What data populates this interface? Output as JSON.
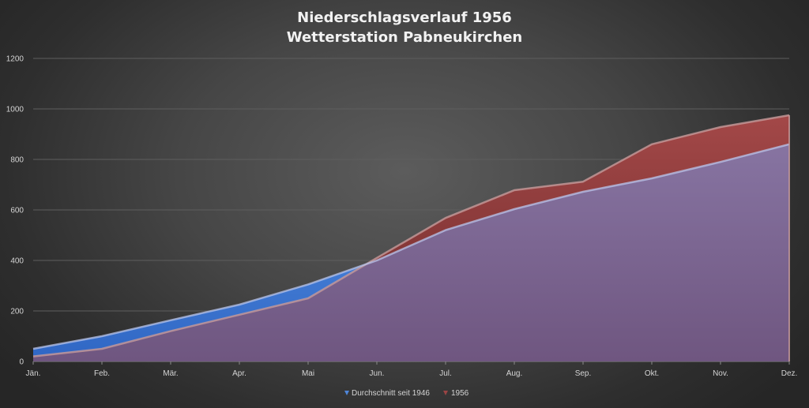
{
  "chart_data": {
    "type": "area",
    "title": "Niederschlagsverlauf 1956",
    "subtitle": "Wetterstation Pabneukirchen",
    "xlabel": "",
    "ylabel": "",
    "categories": [
      "Jän.",
      "Feb.",
      "Mär.",
      "Apr.",
      "Mai",
      "Jun.",
      "Jul.",
      "Aug.",
      "Sep.",
      "Okt.",
      "Nov.",
      "Dez."
    ],
    "ylim": [
      0,
      1200
    ],
    "yticks": [
      "0",
      "200",
      "400",
      "600",
      "800",
      "1000",
      "1200"
    ],
    "grid": true,
    "legend_position": "bottom",
    "series": [
      {
        "name": "Durchschnitt seit 1946",
        "color": "#4f86d9",
        "values": [
          50,
          100,
          163,
          225,
          305,
          400,
          520,
          603,
          672,
          725,
          790,
          860
        ]
      },
      {
        "name": "1956",
        "color": "#9a4444",
        "values": [
          20,
          50,
          120,
          185,
          250,
          410,
          568,
          678,
          712,
          860,
          928,
          975
        ]
      }
    ]
  }
}
